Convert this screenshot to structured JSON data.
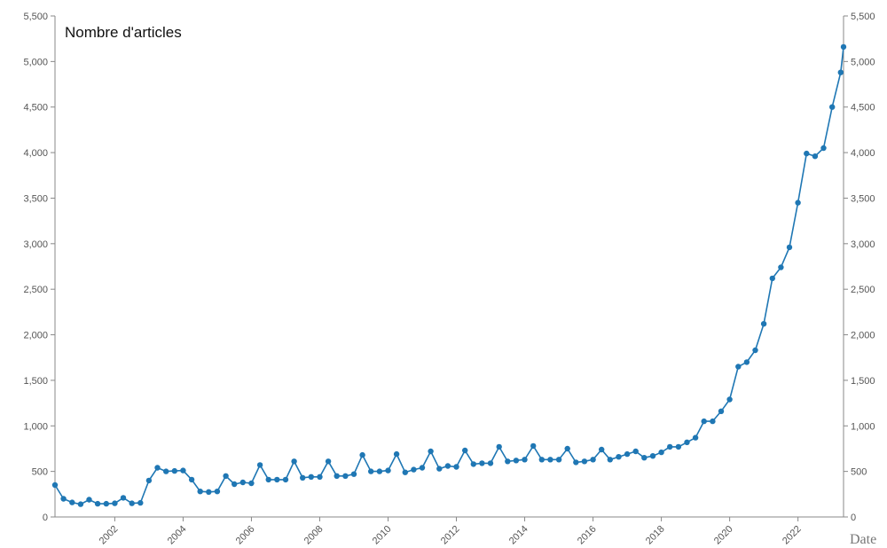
{
  "chart_data": {
    "type": "line",
    "title": "Nombre d'articles",
    "xlabel": "Date",
    "ylabel": "",
    "ylim": [
      0,
      5500
    ],
    "yticks": [
      "0",
      "500",
      "1,000",
      "1,500",
      "2,000",
      "2,500",
      "3,000",
      "3,500",
      "4,000",
      "4,500",
      "5,000",
      "5,500"
    ],
    "yticks_right": [
      "0",
      "500",
      "1,000",
      "1,500",
      "2,000",
      "2,500",
      "3,000",
      "3,500",
      "4,000",
      "4,500",
      "5,000",
      "5,500"
    ],
    "xticks": [
      "2002",
      "2004",
      "2006",
      "2008",
      "2010",
      "2012",
      "2014",
      "2016",
      "2018",
      "2020",
      "2022"
    ],
    "xlim": [
      "2000-04",
      "2023-05"
    ],
    "series_color": "#1f77b4",
    "grid": false,
    "series": [
      {
        "values": [
          {
            "x": "2000-04",
            "y": 350
          },
          {
            "x": "2000-07",
            "y": 200
          },
          {
            "x": "2000-10",
            "y": 160
          },
          {
            "x": "2001-01",
            "y": 140
          },
          {
            "x": "2001-04",
            "y": 190
          },
          {
            "x": "2001-07",
            "y": 145
          },
          {
            "x": "2001-10",
            "y": 145
          },
          {
            "x": "2002-01",
            "y": 150
          },
          {
            "x": "2002-04",
            "y": 210
          },
          {
            "x": "2002-07",
            "y": 150
          },
          {
            "x": "2002-10",
            "y": 155
          },
          {
            "x": "2003-01",
            "y": 400
          },
          {
            "x": "2003-04",
            "y": 540
          },
          {
            "x": "2003-07",
            "y": 500
          },
          {
            "x": "2003-10",
            "y": 505
          },
          {
            "x": "2004-01",
            "y": 510
          },
          {
            "x": "2004-04",
            "y": 410
          },
          {
            "x": "2004-07",
            "y": 280
          },
          {
            "x": "2004-10",
            "y": 275
          },
          {
            "x": "2005-01",
            "y": 280
          },
          {
            "x": "2005-04",
            "y": 450
          },
          {
            "x": "2005-07",
            "y": 360
          },
          {
            "x": "2005-10",
            "y": 380
          },
          {
            "x": "2006-01",
            "y": 370
          },
          {
            "x": "2006-04",
            "y": 570
          },
          {
            "x": "2006-07",
            "y": 410
          },
          {
            "x": "2006-10",
            "y": 410
          },
          {
            "x": "2007-01",
            "y": 410
          },
          {
            "x": "2007-04",
            "y": 610
          },
          {
            "x": "2007-07",
            "y": 430
          },
          {
            "x": "2007-10",
            "y": 440
          },
          {
            "x": "2008-01",
            "y": 440
          },
          {
            "x": "2008-04",
            "y": 610
          },
          {
            "x": "2008-07",
            "y": 450
          },
          {
            "x": "2008-10",
            "y": 450
          },
          {
            "x": "2009-01",
            "y": 470
          },
          {
            "x": "2009-04",
            "y": 680
          },
          {
            "x": "2009-07",
            "y": 500
          },
          {
            "x": "2009-10",
            "y": 500
          },
          {
            "x": "2010-01",
            "y": 510
          },
          {
            "x": "2010-04",
            "y": 690
          },
          {
            "x": "2010-07",
            "y": 490
          },
          {
            "x": "2010-10",
            "y": 520
          },
          {
            "x": "2011-01",
            "y": 540
          },
          {
            "x": "2011-04",
            "y": 720
          },
          {
            "x": "2011-07",
            "y": 530
          },
          {
            "x": "2011-10",
            "y": 560
          },
          {
            "x": "2012-01",
            "y": 550
          },
          {
            "x": "2012-04",
            "y": 730
          },
          {
            "x": "2012-07",
            "y": 580
          },
          {
            "x": "2012-10",
            "y": 590
          },
          {
            "x": "2013-01",
            "y": 590
          },
          {
            "x": "2013-04",
            "y": 770
          },
          {
            "x": "2013-07",
            "y": 610
          },
          {
            "x": "2013-10",
            "y": 620
          },
          {
            "x": "2014-01",
            "y": 630
          },
          {
            "x": "2014-04",
            "y": 780
          },
          {
            "x": "2014-07",
            "y": 630
          },
          {
            "x": "2014-10",
            "y": 630
          },
          {
            "x": "2015-01",
            "y": 630
          },
          {
            "x": "2015-04",
            "y": 750
          },
          {
            "x": "2015-07",
            "y": 600
          },
          {
            "x": "2015-10",
            "y": 610
          },
          {
            "x": "2016-01",
            "y": 630
          },
          {
            "x": "2016-04",
            "y": 740
          },
          {
            "x": "2016-07",
            "y": 630
          },
          {
            "x": "2016-10",
            "y": 660
          },
          {
            "x": "2017-01",
            "y": 690
          },
          {
            "x": "2017-04",
            "y": 720
          },
          {
            "x": "2017-07",
            "y": 650
          },
          {
            "x": "2017-10",
            "y": 670
          },
          {
            "x": "2018-01",
            "y": 710
          },
          {
            "x": "2018-04",
            "y": 770
          },
          {
            "x": "2018-07",
            "y": 770
          },
          {
            "x": "2018-10",
            "y": 820
          },
          {
            "x": "2019-01",
            "y": 870
          },
          {
            "x": "2019-04",
            "y": 1050
          },
          {
            "x": "2019-07",
            "y": 1050
          },
          {
            "x": "2019-10",
            "y": 1160
          },
          {
            "x": "2020-01",
            "y": 1290
          },
          {
            "x": "2020-04",
            "y": 1650
          },
          {
            "x": "2020-07",
            "y": 1700
          },
          {
            "x": "2020-10",
            "y": 1830
          },
          {
            "x": "2021-01",
            "y": 2120
          },
          {
            "x": "2021-04",
            "y": 2620
          },
          {
            "x": "2021-07",
            "y": 2740
          },
          {
            "x": "2021-10",
            "y": 2960
          },
          {
            "x": "2022-01",
            "y": 3450
          },
          {
            "x": "2022-04",
            "y": 3990
          },
          {
            "x": "2022-07",
            "y": 3960
          },
          {
            "x": "2022-10",
            "y": 4050
          },
          {
            "x": "2023-01",
            "y": 4500
          },
          {
            "x": "2023-04",
            "y": 4880
          },
          {
            "x": "2023-05",
            "y": 5160
          }
        ]
      }
    ]
  }
}
